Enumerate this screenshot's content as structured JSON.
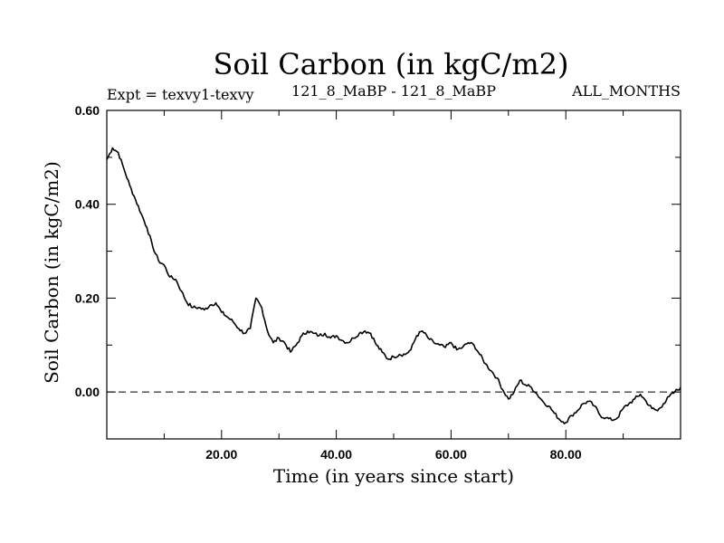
{
  "chart_data": {
    "type": "line",
    "title": "Soil Carbon (in kgC/m2)",
    "subtitle_left": "Expt = texvy1-texvy",
    "subtitle_center": "121_8_MaBP - 121_8_MaBP",
    "subtitle_right": "ALL_MONTHS",
    "xlabel": "Time (in years since start)",
    "ylabel": "Soil Carbon (in kgC/m2)",
    "xlim": [
      0,
      100
    ],
    "ylim": [
      -0.1,
      0.6
    ],
    "xticks": [
      20,
      40,
      60,
      80
    ],
    "xtick_labels": [
      "20.00",
      "40.00",
      "60.00",
      "80.00"
    ],
    "yticks": [
      0.0,
      0.2,
      0.4,
      0.6
    ],
    "ytick_labels": [
      "0.00",
      "0.20",
      "0.40",
      "0.60"
    ],
    "reference_line": {
      "y": 0.0,
      "style": "dashed"
    },
    "series": [
      {
        "name": "Soil Carbon",
        "x": [
          0,
          1,
          2,
          3,
          4,
          5,
          6,
          7,
          8,
          9,
          10,
          11,
          12,
          13,
          14,
          15,
          16,
          17,
          18,
          19,
          20,
          21,
          22,
          23,
          24,
          25,
          26,
          27,
          28,
          29,
          30,
          31,
          32,
          33,
          34,
          35,
          36,
          37,
          38,
          39,
          40,
          41,
          42,
          43,
          44,
          45,
          46,
          47,
          48,
          49,
          50,
          51,
          52,
          53,
          54,
          55,
          56,
          57,
          58,
          59,
          60,
          61,
          62,
          63,
          64,
          65,
          66,
          67,
          68,
          69,
          70,
          71,
          72,
          73,
          74,
          75,
          76,
          77,
          78,
          79,
          80,
          81,
          82,
          83,
          84,
          85,
          86,
          87,
          88,
          89,
          90,
          91,
          92,
          93,
          94,
          95,
          96,
          97,
          98,
          99,
          100
        ],
        "values": [
          0.495,
          0.52,
          0.51,
          0.475,
          0.44,
          0.41,
          0.38,
          0.35,
          0.31,
          0.28,
          0.27,
          0.245,
          0.24,
          0.215,
          0.19,
          0.18,
          0.18,
          0.175,
          0.185,
          0.19,
          0.17,
          0.16,
          0.15,
          0.135,
          0.125,
          0.135,
          0.2,
          0.18,
          0.13,
          0.105,
          0.115,
          0.105,
          0.085,
          0.1,
          0.12,
          0.13,
          0.125,
          0.12,
          0.125,
          0.115,
          0.12,
          0.11,
          0.105,
          0.115,
          0.125,
          0.13,
          0.125,
          0.1,
          0.085,
          0.07,
          0.075,
          0.08,
          0.08,
          0.09,
          0.12,
          0.13,
          0.115,
          0.105,
          0.1,
          0.095,
          0.105,
          0.09,
          0.095,
          0.105,
          0.1,
          0.08,
          0.06,
          0.045,
          0.03,
          0.005,
          -0.015,
          0.0,
          0.025,
          0.015,
          0.01,
          -0.005,
          -0.02,
          -0.03,
          -0.045,
          -0.06,
          -0.065,
          -0.05,
          -0.04,
          -0.025,
          -0.02,
          -0.03,
          -0.05,
          -0.055,
          -0.06,
          -0.055,
          -0.035,
          -0.025,
          -0.015,
          -0.005,
          -0.02,
          -0.035,
          -0.04,
          -0.025,
          -0.01,
          0.0,
          0.01
        ]
      }
    ]
  }
}
